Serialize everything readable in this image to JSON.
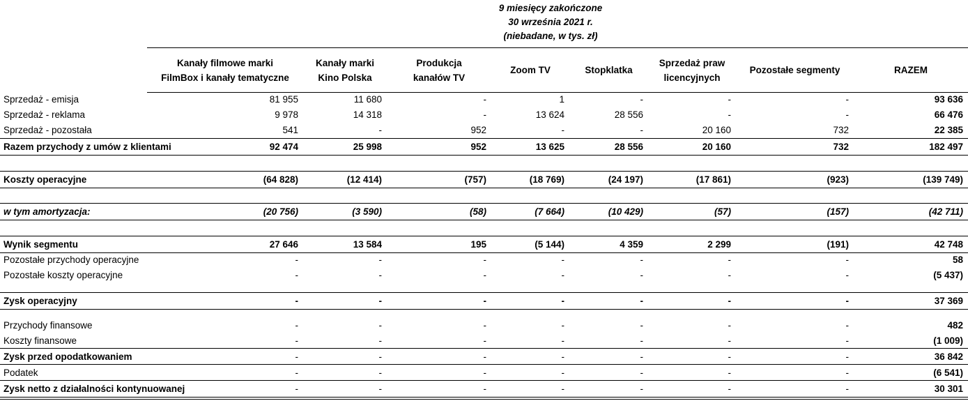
{
  "header": {
    "period_lines": [
      "9 miesięcy zakończone",
      "30 września 2021 r.",
      "(niebadane, w tys. zł)"
    ],
    "columns": [
      [
        "Kanały filmowe marki",
        "FilmBox i kanały tematyczne"
      ],
      [
        "Kanały marki",
        "Kino Polska"
      ],
      [
        "Produkcja",
        "kanałów TV"
      ],
      [
        "Zoom TV"
      ],
      [
        "Stopklatka"
      ],
      [
        "Sprzedaż praw",
        "licencyjnych"
      ],
      [
        "Pozostałe segmenty"
      ],
      [
        "RAZEM"
      ]
    ]
  },
  "rows": [
    {
      "label": "Sprzedaż - emisja",
      "values": [
        "81 955",
        "11 680",
        "-",
        "1",
        "-",
        "-",
        "-",
        "93 636"
      ]
    },
    {
      "label": "Sprzedaż - reklama",
      "values": [
        "9 978",
        "14 318",
        "-",
        "13 624",
        "28 556",
        "-",
        "-",
        "66 476"
      ]
    },
    {
      "label": "Sprzedaż - pozostała",
      "values": [
        "541",
        "-",
        "952",
        "-",
        "-",
        "20 160",
        "732",
        "22 385"
      ]
    },
    {
      "label": "Razem przychody z umów z klientami",
      "style": "bold",
      "values": [
        "92 474",
        "25 998",
        "952",
        "13 625",
        "28 556",
        "20 160",
        "732",
        "182 497"
      ]
    },
    {
      "spacer": true
    },
    {
      "label": "Koszty operacyjne",
      "style": "bold",
      "values": [
        "(64 828)",
        "(12 414)",
        "(757)",
        "(18 769)",
        "(24 197)",
        "(17 861)",
        "(923)",
        "(139 749)"
      ]
    },
    {
      "spacer": true
    },
    {
      "label": "w tym amortyzacja:",
      "style": "bold-italic",
      "values": [
        "(20 756)",
        "(3 590)",
        "(58)",
        "(7 664)",
        "(10 429)",
        "(57)",
        "(157)",
        "(42 711)"
      ]
    },
    {
      "spacer": true
    },
    {
      "label": "Wynik segmentu",
      "style": "bold",
      "values": [
        "27 646",
        "13 584",
        "195",
        "(5 144)",
        "4 359",
        "2 299",
        "(191)",
        "42 748"
      ]
    },
    {
      "label": "Pozostałe przychody operacyjne",
      "values": [
        "-",
        "-",
        "-",
        "-",
        "-",
        "-",
        "-",
        "58"
      ]
    },
    {
      "label": "Pozostałe koszty operacyjne",
      "values": [
        "-",
        "-",
        "-",
        "-",
        "-",
        "-",
        "-",
        "(5 437)"
      ]
    },
    {
      "spacer": true
    },
    {
      "label": "Zysk operacyjny",
      "style": "bold",
      "values": [
        "-",
        "-",
        "-",
        "-",
        "-",
        "-",
        "-",
        "37 369"
      ]
    },
    {
      "spacer": true
    },
    {
      "label": "Przychody finansowe",
      "values": [
        "-",
        "-",
        "-",
        "-",
        "-",
        "-",
        "-",
        "482"
      ]
    },
    {
      "label": "Koszty finansowe",
      "values": [
        "-",
        "-",
        "-",
        "-",
        "-",
        "-",
        "-",
        "(1 009)"
      ]
    },
    {
      "label": "Zysk przed opodatkowaniem",
      "style": "bold-label",
      "values": [
        "-",
        "-",
        "-",
        "-",
        "-",
        "-",
        "-",
        "36 842"
      ]
    },
    {
      "label": "Podatek",
      "values": [
        "-",
        "-",
        "-",
        "-",
        "-",
        "-",
        "-",
        "(6 541)"
      ]
    },
    {
      "label": "Zysk netto z działalności kontynuowanej",
      "style": "bold-label",
      "values": [
        "-",
        "-",
        "-",
        "-",
        "-",
        "-",
        "-",
        "30 301"
      ]
    }
  ]
}
